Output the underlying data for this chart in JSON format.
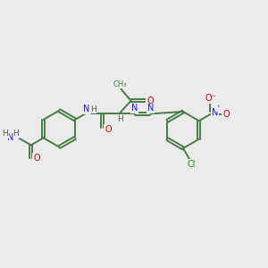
{
  "bg_color": "#ebebeb",
  "bond_color": "#4a7a4a",
  "bond_width": 1.4,
  "dbo": 0.055,
  "atom_colors": {
    "O": "#cc0000",
    "N": "#1a1aee",
    "H": "#555555",
    "Cl": "#228b22",
    "C": "#4a7a4a"
  },
  "figsize": [
    3.0,
    3.0
  ],
  "dpi": 100,
  "xlim": [
    0,
    10
  ],
  "ylim": [
    0,
    10
  ]
}
